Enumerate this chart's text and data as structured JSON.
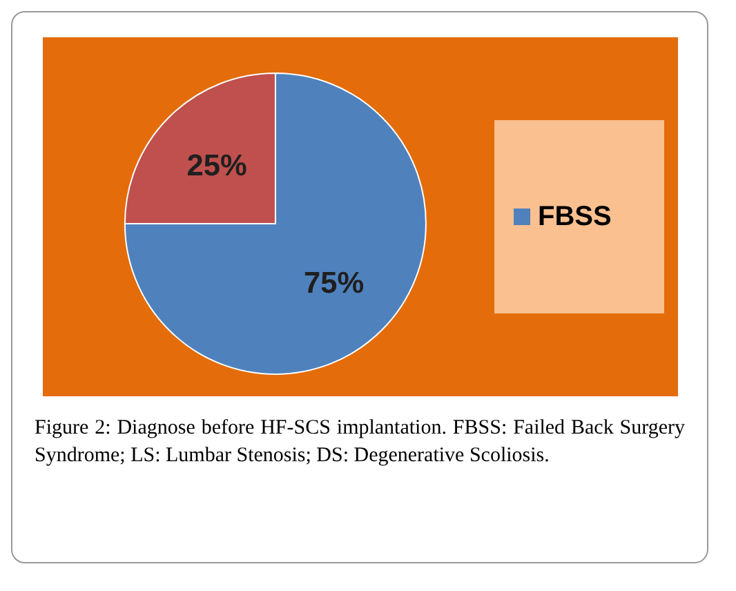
{
  "chart_data": {
    "type": "pie",
    "categories": [
      "FBSS",
      null
    ],
    "values": [
      75,
      25
    ],
    "colors": [
      "#4f81bd",
      "#c0504d"
    ],
    "value_labels": [
      "75%",
      "25%"
    ],
    "legend": "right",
    "annotations": [
      "Figure 2: Diagnose before HF-SCS implantation. FBSS: Failed Back Surgery Syndrome; LS: Lumbar Stenosis; DS: Degenerative Scoliosis."
    ]
  }
}
